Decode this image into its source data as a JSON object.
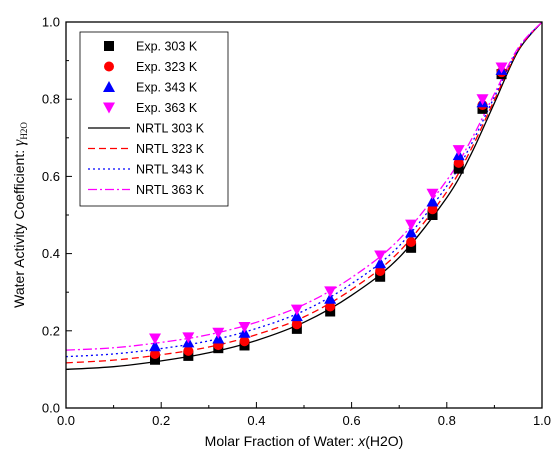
{
  "chart_data": {
    "type": "scatter",
    "xlabel": "Molar Fraction of Water: ",
    "xlabel_italic": "x",
    "xlabel_suffix": "(H2O)",
    "ylabel": "Water Activity Coefficient: ",
    "ylabel_symbol": "γ",
    "ylabel_subscript": "H2O",
    "xlim": [
      0.0,
      1.0
    ],
    "ylim": [
      0.0,
      1.0
    ],
    "xticks": [
      "0.0",
      "0.2",
      "0.4",
      "0.6",
      "0.8",
      "1.0"
    ],
    "yticks": [
      "0.0",
      "0.2",
      "0.4",
      "0.6",
      "0.8",
      "1.0"
    ],
    "grid": false,
    "legend_position": "top-left",
    "x": [
      0.187,
      0.257,
      0.32,
      0.375,
      0.485,
      0.555,
      0.66,
      0.725,
      0.77,
      0.825,
      0.875,
      0.915
    ],
    "series": [
      {
        "name": "Exp. 303 K",
        "kind": "markers",
        "marker": "square",
        "color": "#000000",
        "values": [
          0.125,
          0.135,
          0.155,
          0.162,
          0.205,
          0.25,
          0.34,
          0.415,
          0.5,
          0.62,
          0.775,
          0.865
        ]
      },
      {
        "name": "Exp. 323 K",
        "kind": "markers",
        "marker": "circle",
        "color": "#ff0000",
        "values": [
          0.14,
          0.148,
          0.163,
          0.173,
          0.217,
          0.263,
          0.355,
          0.43,
          0.515,
          0.635,
          0.785,
          0.87
        ]
      },
      {
        "name": "Exp. 343 K",
        "kind": "markers",
        "marker": "triangle-up",
        "color": "#0000ff",
        "values": [
          0.16,
          0.17,
          0.18,
          0.195,
          0.238,
          0.283,
          0.375,
          0.455,
          0.535,
          0.655,
          0.792,
          0.876
        ]
      },
      {
        "name": "Exp. 363 K",
        "kind": "markers",
        "marker": "triangle-down",
        "color": "#ff00ff",
        "values": [
          0.18,
          0.183,
          0.195,
          0.21,
          0.255,
          0.302,
          0.395,
          0.475,
          0.555,
          0.668,
          0.8,
          0.882
        ]
      },
      {
        "name": "NRTL 303 K",
        "kind": "line",
        "dash": "solid",
        "color": "#000000",
        "x": [
          0.0,
          0.1,
          0.2,
          0.3,
          0.4,
          0.5,
          0.6,
          0.7,
          0.8,
          0.85,
          0.9,
          0.95,
          1.0
        ],
        "values": [
          0.1,
          0.107,
          0.122,
          0.143,
          0.175,
          0.222,
          0.292,
          0.39,
          0.545,
          0.655,
          0.79,
          0.925,
          1.0
        ]
      },
      {
        "name": "NRTL 323 K",
        "kind": "line",
        "dash": "dashed",
        "color": "#ff0000",
        "x": [
          0.0,
          0.1,
          0.2,
          0.3,
          0.4,
          0.5,
          0.6,
          0.7,
          0.8,
          0.85,
          0.9,
          0.95,
          1.0
        ],
        "values": [
          0.117,
          0.124,
          0.138,
          0.158,
          0.19,
          0.236,
          0.307,
          0.405,
          0.56,
          0.668,
          0.798,
          0.928,
          1.0
        ]
      },
      {
        "name": "NRTL 343 K",
        "kind": "line",
        "dash": "dotted",
        "color": "#0000ff",
        "x": [
          0.0,
          0.1,
          0.2,
          0.3,
          0.4,
          0.5,
          0.6,
          0.7,
          0.8,
          0.85,
          0.9,
          0.95,
          1.0
        ],
        "values": [
          0.133,
          0.14,
          0.154,
          0.174,
          0.206,
          0.252,
          0.322,
          0.42,
          0.575,
          0.68,
          0.806,
          0.93,
          1.0
        ]
      },
      {
        "name": "NRTL 363 K",
        "kind": "line",
        "dash": "dashdot",
        "color": "#ff00ff",
        "x": [
          0.0,
          0.1,
          0.2,
          0.3,
          0.4,
          0.5,
          0.6,
          0.7,
          0.8,
          0.85,
          0.9,
          0.95,
          1.0
        ],
        "values": [
          0.15,
          0.156,
          0.17,
          0.19,
          0.222,
          0.268,
          0.338,
          0.437,
          0.59,
          0.692,
          0.814,
          0.933,
          1.0
        ]
      }
    ]
  }
}
